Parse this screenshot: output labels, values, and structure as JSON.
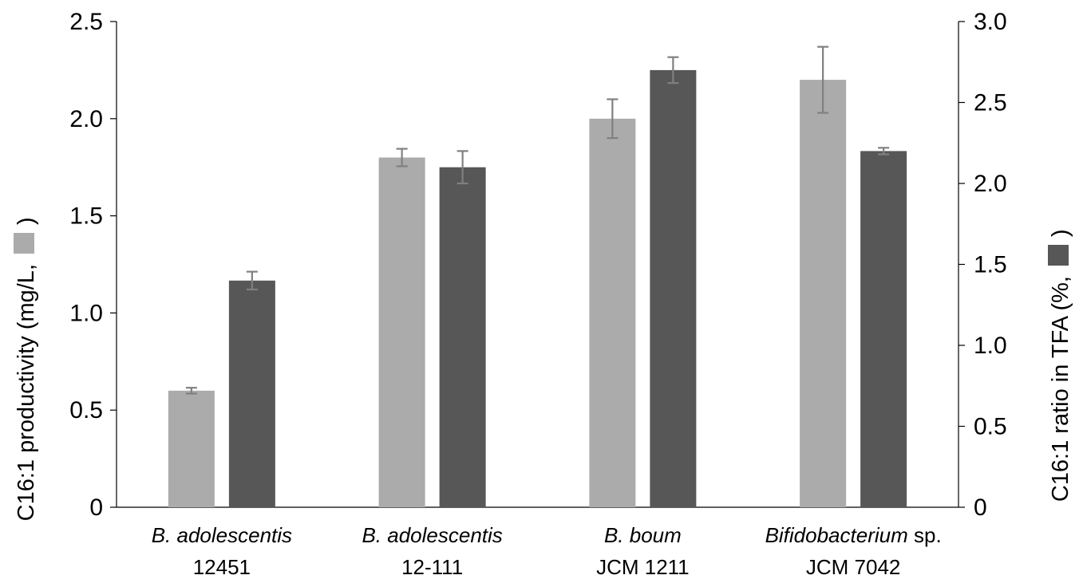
{
  "chart_data": {
    "type": "bar",
    "categories": [
      {
        "italic": "B. adolescentis",
        "plain": "",
        "line2": "12451"
      },
      {
        "italic": "B. adolescentis",
        "plain": "",
        "line2": "12-111"
      },
      {
        "italic": "B. boum",
        "plain": "",
        "line2": "JCM 1211"
      },
      {
        "italic": "Bifidobacterium",
        "plain": " sp.",
        "line2": "JCM 7042"
      }
    ],
    "series": [
      {
        "axis": "left",
        "color": "#ababab",
        "values": [
          0.6,
          1.8,
          2.0,
          2.2
        ],
        "errors": [
          0.015,
          0.045,
          0.1,
          0.17
        ]
      },
      {
        "axis": "right",
        "color": "#575757",
        "values": [
          1.4,
          2.1,
          2.7,
          2.2
        ],
        "errors": [
          0.055,
          0.1,
          0.08,
          0.02
        ]
      }
    ],
    "ylabel": "C16:1 productivity (mg/L, )",
    "y2label": "C16:1 ratio in TFA (%, )",
    "ylim": [
      0,
      2.5
    ],
    "y2lim": [
      0,
      3.0
    ],
    "yticks": [
      "0",
      "0.5",
      "1.0",
      "1.5",
      "2.0",
      "2.5"
    ],
    "y2ticks": [
      "0",
      "0.5",
      "1.0",
      "1.5",
      "2.0",
      "2.5",
      "3.0"
    ],
    "errorbar_color": "#808080",
    "grid": false,
    "legend": "none"
  }
}
